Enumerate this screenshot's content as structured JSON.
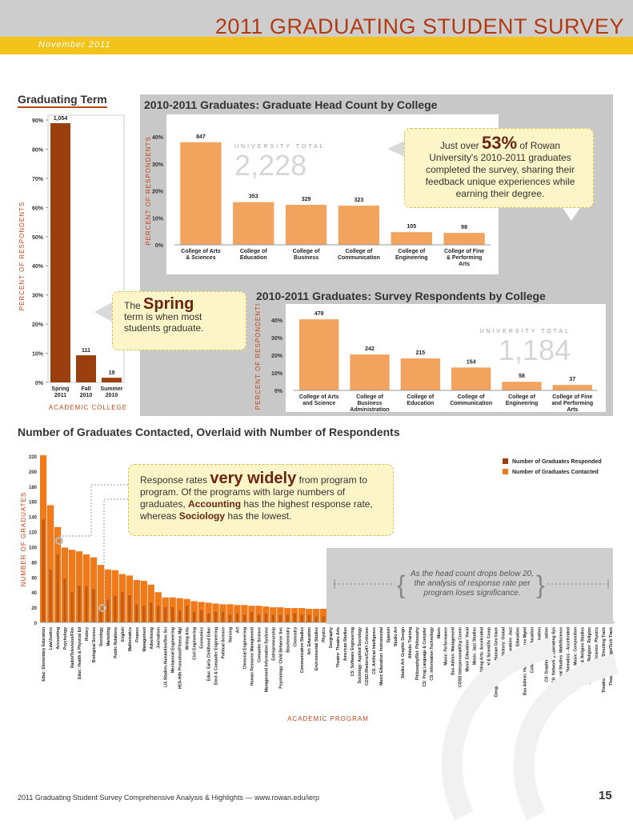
{
  "header": {
    "title": "2011 GRADUATING STUDENT SURVEY",
    "date": "November 2011"
  },
  "footer": {
    "text": "2011 Graduating Student Survey Comprehensive Analysis & Highlights — www.rowan.edu/ierp",
    "page": "15"
  },
  "colors": {
    "dark_bar": "#9b3f0e",
    "light_bar": "#f2a45f",
    "bright_bar": "#f07a1a",
    "accent": "#c0451a"
  },
  "callouts": {
    "rate_pre": "Just over ",
    "rate_big": "53%",
    "rate_post": " of Rowan University's 2010-2011 graduates completed the survey, sharing their feedback unique experiences while earning their degree.",
    "spring_pre": "The ",
    "spring_big": "Spring",
    "spring_post": "term is when most students graduate.",
    "resp_pre": "Response rates ",
    "resp_big": "very widely",
    "resp_mid1": " from program to program. Of the programs with large numbers of graduates, ",
    "resp_acc": "Accounting",
    "resp_mid2": " has the highest response rate, whereas ",
    "resp_soc": "Sociology",
    "resp_end": " has the lowest.",
    "drop_note": "As the head count drops below 20, the analysis of response rate per program loses significance."
  },
  "chart_data": [
    {
      "type": "bar",
      "title": "Graduating Term",
      "categories": [
        "Spring 2011",
        "Fall 2010",
        "Summer 2010"
      ],
      "values": [
        88.9,
        9.3,
        1.6
      ],
      "labels": [
        "1,054",
        "111",
        "19"
      ],
      "ylabel": "PERCENT OF RESPONDENTS",
      "xlabel": "ACADEMIC COLLEGE",
      "yticks": [
        "0%",
        "10%",
        "20%",
        "30%",
        "40%",
        "50%",
        "60%",
        "70%",
        "80%",
        "90%"
      ],
      "ylim": [
        0,
        90
      ]
    },
    {
      "type": "bar",
      "title": "2010-2011 Graduates: Graduate Head Count by College",
      "categories": [
        "College of Arts & Sciences",
        "College of Education",
        "College of Business",
        "College of Communication",
        "College of Engineering",
        "College of Fine & Performing Arts"
      ],
      "values": [
        38.0,
        15.8,
        14.8,
        14.5,
        4.7,
        4.4
      ],
      "labels": [
        "847",
        "353",
        "329",
        "323",
        "105",
        "98"
      ],
      "ylabel": "PERCENT OF RESPONDENTS",
      "yticks": [
        "0%",
        "10%",
        "20%",
        "30%",
        "40%"
      ],
      "ylim": [
        0,
        40
      ],
      "total_label": "UNIVERSITY TOTAL",
      "total": "2,228"
    },
    {
      "type": "bar",
      "title": "2010-2011 Graduates: Survey Respondents by College",
      "categories": [
        "College of Arts and Science",
        "College of Business Administration",
        "College of Education",
        "College of Communication",
        "College of Engineering",
        "College of Fine and Performing Arts"
      ],
      "values": [
        40.4,
        20.4,
        18.2,
        13.0,
        4.9,
        3.1
      ],
      "labels": [
        "478",
        "242",
        "215",
        "154",
        "58",
        "37"
      ],
      "ylabel": "PERCENT OF RESPONDENTS",
      "yticks": [
        "0%",
        "10%",
        "20%",
        "30%",
        "40%"
      ],
      "ylim": [
        0,
        40
      ],
      "total_label": "UNIVERSITY TOTAL",
      "total": "1,184"
    },
    {
      "type": "bar",
      "title": "Number of Graduates Contacted, Overlaid with Number of Respondents",
      "ylabel": "NUMBER OF GRADUATES",
      "xlabel": "ACADEMIC PROGRAM",
      "yticks": [
        "0",
        "20",
        "40",
        "60",
        "80",
        "100",
        "120",
        "140",
        "160",
        "180",
        "200",
        "220"
      ],
      "ylim": [
        0,
        220
      ],
      "legend": [
        "Number of Graduates Responded",
        "Number of Graduates Contacted"
      ],
      "categories": [
        "Educ: Elementary Education",
        "Law/Justice",
        "Accounting",
        "Psychology",
        "Radio/Television/Film",
        "Educ: Health & Physical Ed",
        "History",
        "Biological Science",
        "Sociology",
        "Marketing",
        "Public Relations",
        "English",
        "Mathematics",
        "Finance",
        "Management",
        "Advertising",
        "Journalism",
        "Lib Studies-Humanities/Soc Sci",
        "Mechanical Engineering",
        "HES-Hlth Promotion/Fitness Mgt",
        "Writing Arts",
        "Civil Engineering",
        "Economics",
        "Educ: Early Childhood Educ",
        "Elect & Computer Engineering",
        "Political Science",
        "Nursing",
        "Art",
        "Chemical Engineering",
        "Human Resource Management",
        "Computer Science",
        "Management Information Systems",
        "Entrepreneurship",
        "Psychology: Child Behavior Svc",
        "Biochemistry",
        "Chemistry",
        "Communication Studies",
        "Art: Education",
        "Environmental Studies",
        "Physics",
        "Geography",
        "Theatre: Theatre Arts",
        "American Studies",
        "CS: Software Engineering",
        "Sociology: Applied Sociology",
        "COSD:Rhetoric/Cult'l Criticism",
        "CS: Artificial Intelligence",
        "Music Education: Instrumental",
        "Spanish",
        "Studio Art",
        "Studio Art: Graphic Design",
        "Athletic Training",
        "Philosophy/Rel: Philosophy",
        "CS: Prog Language & Compiler",
        "CS: Information Technology",
        "Music",
        "Music: Performance",
        "Bus Admin: Management",
        "COSD:Interpersonal/Org Comm",
        "Music Education: Vocal",
        "Music: Jazz Studies",
        "Writing Arts: Accelerated",
        "CS: Numerical & Scientific Comp",
        "Geography-Anthro/Human Geo track",
        "History: Global",
        "Music Education: Jazz",
        "Music: Education",
        "Bus Admin: Human Resource Mgmt",
        "Collaborative Education",
        "Communication",
        "CS: Graphics & Visualization",
        "CS: Network & Operating Sys",
        "Liberal Studies: Math/Science",
        "Mathematics - Accelerated",
        "Music: Composition",
        "Philosophy & Religion Studies",
        "Philosophy/Religion: Religion",
        "Physical Science: Physics",
        "Theatre: TA-Acting/Directing Track",
        "Theatre: TA-Design/Tech Track"
      ],
      "contacted": [
        221,
        155,
        126,
        99,
        96,
        94,
        90,
        86,
        76,
        70,
        69,
        64,
        62,
        56,
        55,
        50,
        40,
        33,
        33,
        32,
        31,
        28,
        27,
        26,
        25,
        24,
        24,
        23,
        23,
        22,
        22,
        21,
        20,
        20,
        19,
        19,
        19,
        18,
        18,
        18,
        13,
        12,
        12,
        11,
        10,
        10,
        9,
        9,
        8,
        8,
        7,
        7,
        6,
        5,
        5,
        5,
        4,
        4,
        4,
        3,
        3,
        3,
        3,
        2,
        2,
        2,
        2,
        2,
        2,
        2,
        1,
        1,
        1,
        1,
        1,
        1,
        1,
        1,
        1,
        1
      ],
      "responded": [
        136,
        70,
        90,
        58,
        40,
        48,
        48,
        44,
        18,
        30,
        35,
        40,
        36,
        24,
        22,
        26,
        22,
        20,
        20,
        16,
        22,
        14,
        16,
        12,
        14,
        14,
        10,
        12,
        10,
        14,
        10,
        12,
        10,
        10,
        10,
        12,
        10,
        10,
        8,
        8,
        8,
        6,
        6,
        6,
        4,
        4,
        6,
        4,
        4,
        4,
        4,
        4,
        4,
        2,
        2,
        2,
        2,
        2,
        2,
        2,
        2,
        2,
        2,
        1,
        1,
        1,
        1,
        1,
        1,
        1,
        1,
        1,
        1,
        1,
        1,
        1,
        1,
        1,
        1,
        1
      ]
    }
  ]
}
